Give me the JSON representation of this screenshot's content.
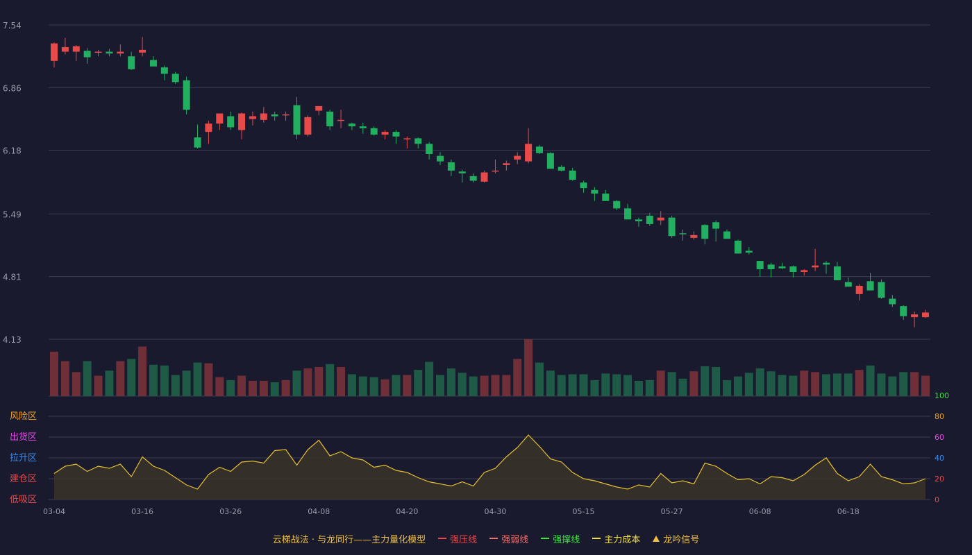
{
  "chart_data": {
    "type": "candlestick",
    "price_axis": {
      "ticks": [
        4.13,
        4.81,
        5.49,
        6.18,
        6.86,
        7.54
      ],
      "ylim": [
        4.13,
        7.54
      ]
    },
    "osc_axis": {
      "ticks": [
        0,
        20,
        40,
        60,
        80,
        100
      ],
      "ylim": [
        0,
        100
      ],
      "tick_colors": [
        "#e84a4a",
        "#e84a4a",
        "#3a8df0",
        "#e84ae8",
        "#f0a020",
        "#3ae83a"
      ]
    },
    "zones": [
      {
        "label": "风险区",
        "color": "#f0a020"
      },
      {
        "label": "出货区",
        "color": "#e84ae8"
      },
      {
        "label": "拉升区",
        "color": "#3a8df0"
      },
      {
        "label": "建仓区",
        "color": "#e84a4a"
      },
      {
        "label": "低吸区",
        "color": "#e84a4a"
      }
    ],
    "x_ticks": [
      {
        "index": 0,
        "label": "03-04"
      },
      {
        "index": 8,
        "label": "03-16"
      },
      {
        "index": 16,
        "label": "03-26"
      },
      {
        "index": 24,
        "label": "04-08"
      },
      {
        "index": 32,
        "label": "04-20"
      },
      {
        "index": 40,
        "label": "04-30"
      },
      {
        "index": 48,
        "label": "05-15"
      },
      {
        "index": 56,
        "label": "05-27"
      },
      {
        "index": 64,
        "label": "06-08"
      },
      {
        "index": 72,
        "label": "06-18"
      }
    ],
    "ohlc": [
      [
        7.15,
        7.35,
        7.08,
        7.34
      ],
      [
        7.25,
        7.4,
        7.22,
        7.3
      ],
      [
        7.25,
        7.32,
        7.15,
        7.31
      ],
      [
        7.26,
        7.29,
        7.12,
        7.19
      ],
      [
        7.24,
        7.27,
        7.2,
        7.25
      ],
      [
        7.25,
        7.28,
        7.2,
        7.23
      ],
      [
        7.23,
        7.33,
        7.2,
        7.25
      ],
      [
        7.2,
        7.25,
        7.05,
        7.06
      ],
      [
        7.24,
        7.41,
        7.2,
        7.27
      ],
      [
        7.16,
        7.2,
        7.1,
        7.09
      ],
      [
        7.08,
        7.1,
        6.94,
        7.01
      ],
      [
        7.01,
        7.03,
        6.9,
        6.92
      ],
      [
        6.94,
        6.98,
        6.57,
        6.62
      ],
      [
        6.32,
        6.46,
        6.2,
        6.21
      ],
      [
        6.38,
        6.5,
        6.25,
        6.47
      ],
      [
        6.47,
        6.56,
        6.4,
        6.58
      ],
      [
        6.55,
        6.6,
        6.4,
        6.43
      ],
      [
        6.4,
        6.59,
        6.3,
        6.58
      ],
      [
        6.52,
        6.6,
        6.45,
        6.55
      ],
      [
        6.51,
        6.65,
        6.48,
        6.58
      ],
      [
        6.57,
        6.6,
        6.5,
        6.55
      ],
      [
        6.56,
        6.6,
        6.5,
        6.57
      ],
      [
        6.67,
        6.76,
        6.3,
        6.35
      ],
      [
        6.35,
        6.56,
        6.33,
        6.54
      ],
      [
        6.61,
        6.65,
        6.56,
        6.66
      ],
      [
        6.6,
        6.62,
        6.4,
        6.44
      ],
      [
        6.5,
        6.62,
        6.42,
        6.51
      ],
      [
        6.47,
        6.48,
        6.4,
        6.44
      ],
      [
        6.44,
        6.48,
        6.36,
        6.42
      ],
      [
        6.42,
        6.44,
        6.34,
        6.35
      ],
      [
        6.35,
        6.4,
        6.3,
        6.38
      ],
      [
        6.38,
        6.4,
        6.25,
        6.33
      ],
      [
        6.31,
        6.33,
        6.2,
        6.31
      ],
      [
        6.31,
        6.32,
        6.2,
        6.25
      ],
      [
        6.25,
        6.27,
        6.08,
        6.14
      ],
      [
        6.12,
        6.16,
        6.02,
        6.06
      ],
      [
        6.05,
        6.08,
        5.9,
        5.96
      ],
      [
        5.95,
        5.97,
        5.83,
        5.93
      ],
      [
        5.9,
        5.93,
        5.83,
        5.85
      ],
      [
        5.84,
        5.96,
        5.83,
        5.94
      ],
      [
        5.95,
        6.08,
        5.93,
        5.96
      ],
      [
        6.02,
        6.07,
        5.96,
        6.04
      ],
      [
        6.08,
        6.16,
        6.03,
        6.12
      ],
      [
        6.06,
        6.42,
        6.04,
        6.25
      ],
      [
        6.22,
        6.24,
        6.14,
        6.15
      ],
      [
        6.15,
        6.16,
        5.98,
        5.98
      ],
      [
        6.0,
        6.02,
        5.95,
        5.96
      ],
      [
        5.96,
        5.99,
        5.85,
        5.86
      ],
      [
        5.83,
        5.85,
        5.72,
        5.77
      ],
      [
        5.75,
        5.78,
        5.63,
        5.71
      ],
      [
        5.71,
        5.75,
        5.65,
        5.63
      ],
      [
        5.63,
        5.64,
        5.53,
        5.55
      ],
      [
        5.55,
        5.6,
        5.45,
        5.43
      ],
      [
        5.43,
        5.45,
        5.35,
        5.41
      ],
      [
        5.47,
        5.5,
        5.36,
        5.38
      ],
      [
        5.42,
        5.52,
        5.37,
        5.45
      ],
      [
        5.45,
        5.47,
        5.23,
        5.25
      ],
      [
        5.28,
        5.32,
        5.2,
        5.27
      ],
      [
        5.23,
        5.3,
        5.21,
        5.26
      ],
      [
        5.37,
        5.38,
        5.16,
        5.22
      ],
      [
        5.4,
        5.42,
        5.19,
        5.33
      ],
      [
        5.3,
        5.32,
        5.24,
        5.22
      ],
      [
        5.2,
        5.21,
        5.07,
        5.06
      ],
      [
        5.09,
        5.13,
        5.05,
        5.07
      ],
      [
        4.98,
        4.98,
        4.81,
        4.89
      ],
      [
        4.94,
        4.96,
        4.8,
        4.89
      ],
      [
        4.92,
        4.96,
        4.89,
        4.9
      ],
      [
        4.92,
        4.93,
        4.8,
        4.86
      ],
      [
        4.86,
        4.89,
        4.82,
        4.88
      ],
      [
        4.91,
        5.11,
        4.87,
        4.93
      ],
      [
        4.96,
        4.98,
        4.84,
        4.94
      ],
      [
        4.92,
        4.97,
        4.8,
        4.77
      ],
      [
        4.75,
        4.8,
        4.7,
        4.7
      ],
      [
        4.62,
        4.73,
        4.55,
        4.71
      ],
      [
        4.76,
        4.85,
        4.67,
        4.66
      ],
      [
        4.75,
        4.78,
        4.57,
        4.58
      ],
      [
        4.57,
        4.61,
        4.48,
        4.51
      ],
      [
        4.49,
        4.5,
        4.34,
        4.38
      ],
      [
        4.37,
        4.43,
        4.26,
        4.4
      ],
      [
        4.37,
        4.45,
        4.36,
        4.42
      ]
    ],
    "volume": [
      61,
      48,
      33,
      48,
      28,
      35,
      48,
      51,
      68,
      43,
      42,
      29,
      35,
      46,
      45,
      26,
      22,
      28,
      21,
      21,
      19,
      22,
      35,
      38,
      40,
      44,
      40,
      30,
      27,
      26,
      23,
      29,
      29,
      36,
      47,
      29,
      38,
      32,
      27,
      28,
      29,
      29,
      51,
      78,
      46,
      35,
      29,
      30,
      30,
      22,
      31,
      30,
      29,
      21,
      22,
      35,
      33,
      24,
      34,
      41,
      40,
      22,
      27,
      32,
      38,
      34,
      29,
      28,
      35,
      33,
      30,
      31,
      31,
      36,
      42,
      31,
      27,
      33,
      33,
      28
    ],
    "oscillator": [
      25,
      32,
      34,
      27,
      32,
      30,
      34,
      22,
      41,
      32,
      28,
      21,
      14,
      10,
      24,
      31,
      27,
      36,
      37,
      35,
      47,
      48,
      33,
      48,
      57,
      42,
      46,
      40,
      38,
      31,
      33,
      28,
      26,
      21,
      17,
      15,
      13,
      17,
      13,
      26,
      30,
      41,
      50,
      62,
      51,
      39,
      36,
      26,
      20,
      18,
      15,
      12,
      10,
      14,
      12,
      25,
      16,
      18,
      15,
      35,
      32,
      25,
      19,
      20,
      15,
      22,
      21,
      18,
      24,
      33,
      40,
      25,
      18,
      22,
      34,
      22,
      19,
      15,
      16,
      20
    ]
  },
  "legend": [
    {
      "text": "云梯战法 · 与龙同行——主力量化模型",
      "color": "#f0c040",
      "marker": "none"
    },
    {
      "text": "强压线",
      "color": "#e84a4a",
      "marker": "line"
    },
    {
      "text": "强弱线",
      "color": "#f07070",
      "marker": "dash"
    },
    {
      "text": "强撑线",
      "color": "#3ae83a",
      "marker": "line"
    },
    {
      "text": "主力成本",
      "color": "#f0e040",
      "marker": "dash"
    },
    {
      "text": "龙吟信号",
      "color": "#f0c040",
      "marker": "triangle"
    }
  ],
  "colors": {
    "up": "#e84a4a",
    "down": "#22b060",
    "vol_up": "#6e2f38",
    "vol_down": "#1e5a45",
    "osc_line": "#e8c030",
    "osc_fill": "#3a3528",
    "grid": "#3a3c50",
    "tick_text": "#9a9aa8"
  }
}
